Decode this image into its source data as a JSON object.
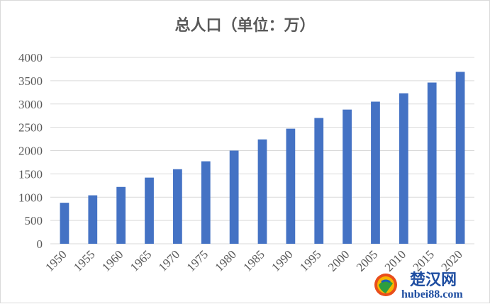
{
  "chart_data": {
    "type": "bar",
    "title": "总人口（单位：万）",
    "categories": [
      "1950",
      "1955",
      "1960",
      "1965",
      "1970",
      "1975",
      "1980",
      "1985",
      "1990",
      "1995",
      "2000",
      "2005",
      "2010",
      "2015",
      "2020"
    ],
    "values": [
      880,
      1040,
      1220,
      1420,
      1600,
      1770,
      2000,
      2240,
      2470,
      2700,
      2880,
      3050,
      3230,
      3460,
      3690
    ],
    "xlabel": "",
    "ylabel": "",
    "ylim": [
      0,
      4000
    ],
    "yticks": [
      0,
      500,
      1000,
      1500,
      2000,
      2500,
      3000,
      3500,
      4000
    ],
    "grid": true,
    "legend": "none",
    "bar_color": "#4472c4"
  },
  "watermark": {
    "brand": "楚汉网",
    "url": "hubei88.com"
  }
}
